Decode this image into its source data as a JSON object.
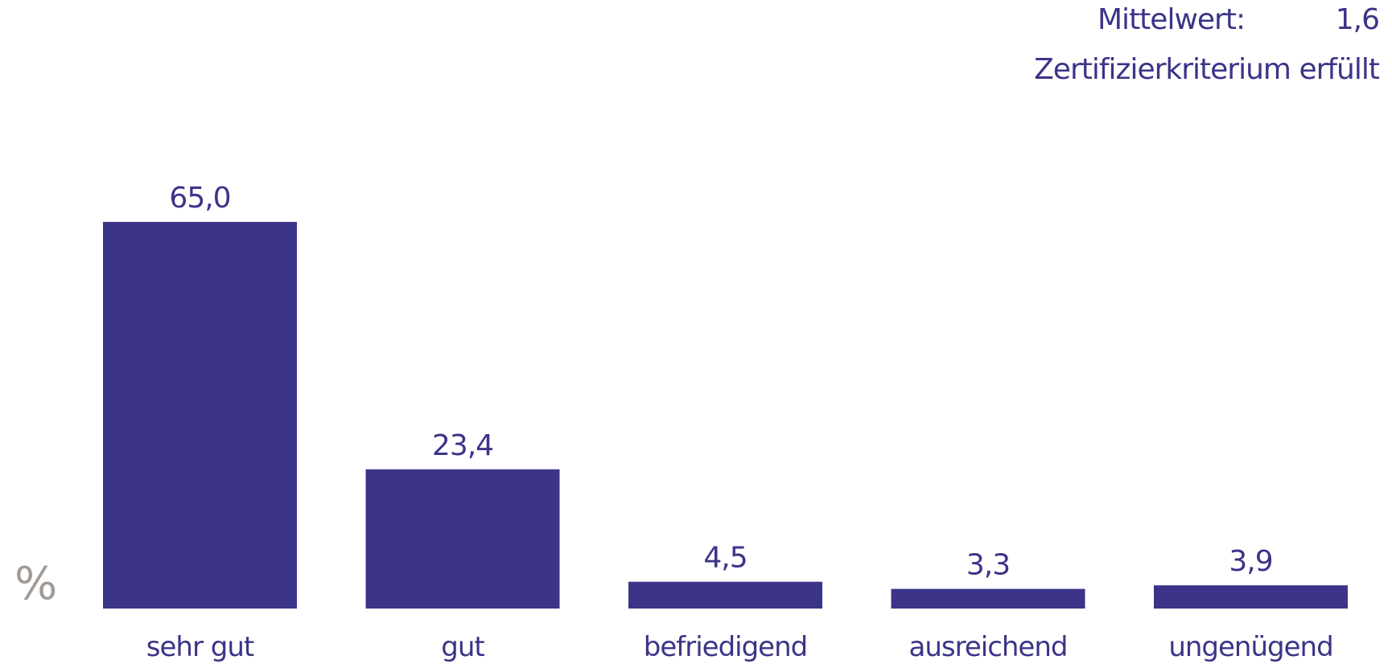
{
  "summary": {
    "mean_label": "Mittelwert:",
    "mean_value": "1,6",
    "criterion": "Zertifizierkriterium erfüllt"
  },
  "unit": "%",
  "colors": {
    "bar": "#3b3488",
    "text": "#3b3488",
    "unit": "#a29a94"
  },
  "chart_data": {
    "type": "bar",
    "categories": [
      "sehr gut",
      "gut",
      "befriedigend",
      "ausreichend",
      "ungenügend"
    ],
    "values": [
      65.0,
      23.4,
      4.5,
      3.3,
      3.9
    ],
    "value_labels": [
      "65,0",
      "23,4",
      "4,5",
      "3,3",
      "3,9"
    ],
    "ylabel": "%",
    "ylim": [
      0,
      65
    ],
    "grid": false,
    "legend": "none"
  }
}
